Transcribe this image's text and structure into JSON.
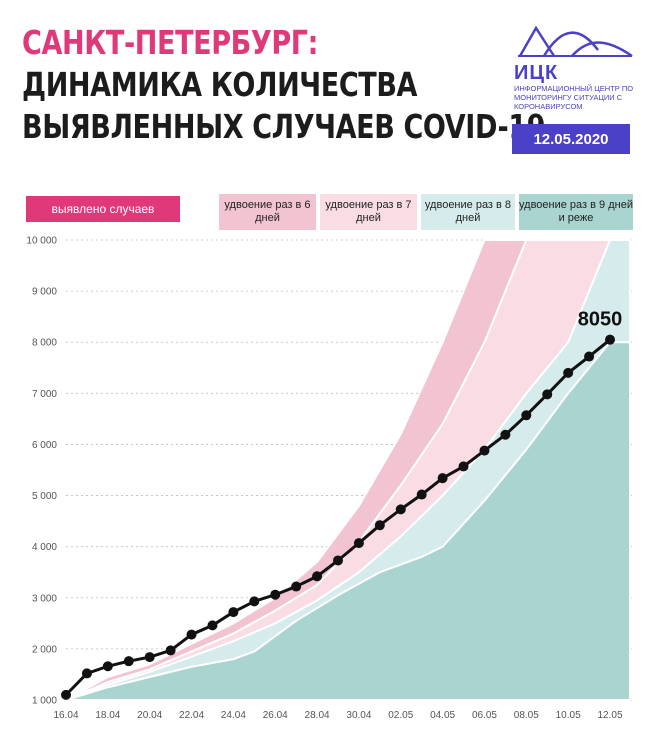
{
  "header": {
    "title_line1": "САНКТ-ПЕТЕРБУРГ:",
    "title_line2": "ДИНАМИКА КОЛИЧЕСТВА",
    "title_line3": "ВЫЯВЛЕННЫХ СЛУЧАЕВ COVID-19",
    "logo_text": "ИЦК",
    "logo_subtitle": "ИНФОРМАЦИОННЫЙ ЦЕНТР ПО МОНИТОРИНГУ СИТУАЦИИ С КОРОНАВИРУСОМ",
    "date": "12.05.2020"
  },
  "legend": {
    "observed": "выявлено случаев",
    "band1": "удвоение раз в 6 дней",
    "band2": "удвоение раз в 7 дней",
    "band3": "удвоение раз в 8 дней",
    "band4": "удвоение раз в 9 дней и реже"
  },
  "colors": {
    "title_accent": "#e0397a",
    "observed_legend": "#e0397a",
    "band1": "#f2c4d2",
    "band2": "#f9dce4",
    "band3": "#d6ecec",
    "band4": "#a9d4cf",
    "line": "#111111",
    "brand": "#4b41c8"
  },
  "chart_data": {
    "type": "line",
    "title": "САНКТ-ПЕТЕРБУРГ: ДИНАМИКА КОЛИЧЕСТВА ВЫЯВЛЕННЫХ СЛУЧАЕВ COVID-19",
    "x_tick_labels": [
      "16.04",
      "18.04",
      "20.04",
      "22.04",
      "24.04",
      "26.04",
      "28.04",
      "30.04",
      "02.05",
      "04.05",
      "06.05",
      "08.05",
      "10.05",
      "12.05"
    ],
    "y_tick_labels": [
      "1 000",
      "2 000",
      "3 000",
      "4 000",
      "5 000",
      "6 000",
      "7 000",
      "8 000",
      "9 000",
      "10 000"
    ],
    "y_ticks": [
      1000,
      2000,
      3000,
      4000,
      5000,
      6000,
      7000,
      8000,
      9000,
      10000
    ],
    "ylim": [
      1000,
      10000
    ],
    "x": [
      "16.04",
      "17.04",
      "18.04",
      "19.04",
      "20.04",
      "21.04",
      "22.04",
      "23.04",
      "24.04",
      "25.04",
      "26.04",
      "27.04",
      "28.04",
      "29.04",
      "30.04",
      "01.05",
      "02.05",
      "03.05",
      "04.05",
      "05.05",
      "06.05",
      "07.05",
      "08.05",
      "09.05",
      "10.05",
      "11.05",
      "12.05"
    ],
    "series": [
      {
        "name": "выявлено случаев",
        "values": [
          1100,
          1520,
          1660,
          1760,
          1840,
          1970,
          2280,
          2460,
          2720,
          2930,
          3060,
          3220,
          3420,
          3730,
          4070,
          4420,
          4730,
          5020,
          5340,
          5570,
          5880,
          6190,
          6570,
          6980,
          7400,
          7720,
          8050
        ]
      }
    ],
    "bands": [
      {
        "name": "удвоение раз в 6 дней",
        "upper": [
          [
            0,
            1000
          ],
          [
            2,
            1450
          ],
          [
            4,
            1700
          ],
          [
            6,
            2100
          ],
          [
            8,
            2500
          ],
          [
            10,
            3000
          ],
          [
            12,
            3700
          ],
          [
            14,
            4800
          ],
          [
            16,
            6200
          ],
          [
            18,
            8000
          ],
          [
            20,
            10000
          ]
        ]
      },
      {
        "name": "удвоение раз в 7 дней",
        "upper": [
          [
            0,
            1000
          ],
          [
            2,
            1350
          ],
          [
            4,
            1600
          ],
          [
            6,
            1950
          ],
          [
            8,
            2300
          ],
          [
            10,
            2750
          ],
          [
            12,
            3250
          ],
          [
            14,
            4100
          ],
          [
            16,
            5200
          ],
          [
            18,
            6400
          ],
          [
            20,
            8000
          ],
          [
            22,
            10000
          ]
        ]
      },
      {
        "name": "удвоение раз в 8 дней",
        "upper": [
          [
            0,
            1000
          ],
          [
            2,
            1300
          ],
          [
            4,
            1550
          ],
          [
            6,
            1850
          ],
          [
            8,
            2150
          ],
          [
            10,
            2500
          ],
          [
            12,
            2950
          ],
          [
            14,
            3500
          ],
          [
            16,
            4200
          ],
          [
            18,
            5000
          ],
          [
            20,
            5900
          ],
          [
            22,
            7000
          ],
          [
            24,
            8000
          ],
          [
            26,
            10000
          ]
        ]
      },
      {
        "name": "удвоение раз в 9 дней и реже",
        "upper": [
          [
            0,
            1000
          ],
          [
            2,
            1250
          ],
          [
            4,
            1450
          ],
          [
            6,
            1650
          ],
          [
            8,
            1800
          ],
          [
            9,
            1950
          ],
          [
            11,
            2550
          ],
          [
            13,
            3050
          ],
          [
            15,
            3500
          ],
          [
            17,
            3800
          ],
          [
            18,
            4000
          ],
          [
            20,
            4900
          ],
          [
            22,
            5900
          ],
          [
            24,
            7000
          ],
          [
            26,
            8000
          ]
        ]
      }
    ],
    "annotation": "8050",
    "grid": true
  }
}
